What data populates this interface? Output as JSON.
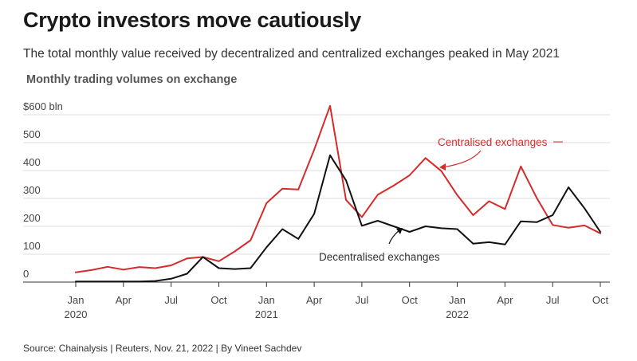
{
  "title": "Crypto investors move cautiously",
  "subtitle": "The total monthly value received by decentralized and centralized exchanges peaked in May 2021",
  "source": "Source: Chainalysis | Reuters, Nov. 21, 2022 | By Vineet Sachdev",
  "colors": {
    "centralised": "#d42b2b",
    "decentralised": "#111111",
    "grid": "#dddddd"
  },
  "chart_data": {
    "type": "line",
    "title": "Monthly trading volumes on exchange",
    "xlabel": "",
    "ylabel": "",
    "ylim": [
      0,
      650
    ],
    "grid": true,
    "y_ticks": [
      {
        "value": 0,
        "label": "0"
      },
      {
        "value": 100,
        "label": "100"
      },
      {
        "value": 200,
        "label": "200"
      },
      {
        "value": 300,
        "label": "300"
      },
      {
        "value": 400,
        "label": "400"
      },
      {
        "value": 500,
        "label": "500"
      },
      {
        "value": 600,
        "label": "$600 bln"
      }
    ],
    "x_ticks": [
      {
        "index": 0,
        "label": "Jan",
        "year": "2020"
      },
      {
        "index": 3,
        "label": "Apr",
        "year": ""
      },
      {
        "index": 6,
        "label": "Jul",
        "year": ""
      },
      {
        "index": 9,
        "label": "Oct",
        "year": ""
      },
      {
        "index": 12,
        "label": "Jan",
        "year": "2021"
      },
      {
        "index": 15,
        "label": "Apr",
        "year": ""
      },
      {
        "index": 18,
        "label": "Jul",
        "year": ""
      },
      {
        "index": 21,
        "label": "Oct",
        "year": ""
      },
      {
        "index": 24,
        "label": "Jan",
        "year": "2022"
      },
      {
        "index": 27,
        "label": "Apr",
        "year": ""
      },
      {
        "index": 30,
        "label": "Jul",
        "year": ""
      },
      {
        "index": 33,
        "label": "Oct",
        "year": ""
      }
    ],
    "x": [
      "2020-01",
      "2020-02",
      "2020-03",
      "2020-04",
      "2020-05",
      "2020-06",
      "2020-07",
      "2020-08",
      "2020-09",
      "2020-10",
      "2020-11",
      "2020-12",
      "2021-01",
      "2021-02",
      "2021-03",
      "2021-04",
      "2021-05",
      "2021-06",
      "2021-07",
      "2021-08",
      "2021-09",
      "2021-10",
      "2021-11",
      "2021-12",
      "2022-01",
      "2022-02",
      "2022-03",
      "2022-04",
      "2022-05",
      "2022-06",
      "2022-07",
      "2022-08",
      "2022-09",
      "2022-10"
    ],
    "series": [
      {
        "name": "Centralised exchanges",
        "color": "#d42b2b",
        "values": [
          35,
          43,
          55,
          45,
          54,
          50,
          60,
          85,
          90,
          75,
          110,
          150,
          283,
          335,
          332,
          475,
          632,
          295,
          233,
          313,
          346,
          383,
          445,
          398,
          312,
          240,
          290,
          262,
          415,
          302,
          205,
          195,
          203,
          175
        ]
      },
      {
        "name": "Decentralised exchanges",
        "color": "#111111",
        "values": [
          2,
          2,
          2,
          2,
          2,
          4,
          12,
          30,
          90,
          50,
          47,
          50,
          125,
          190,
          155,
          245,
          455,
          365,
          202,
          220,
          200,
          180,
          200,
          193,
          190,
          138,
          143,
          135,
          218,
          215,
          240,
          340,
          265,
          180
        ]
      }
    ]
  }
}
